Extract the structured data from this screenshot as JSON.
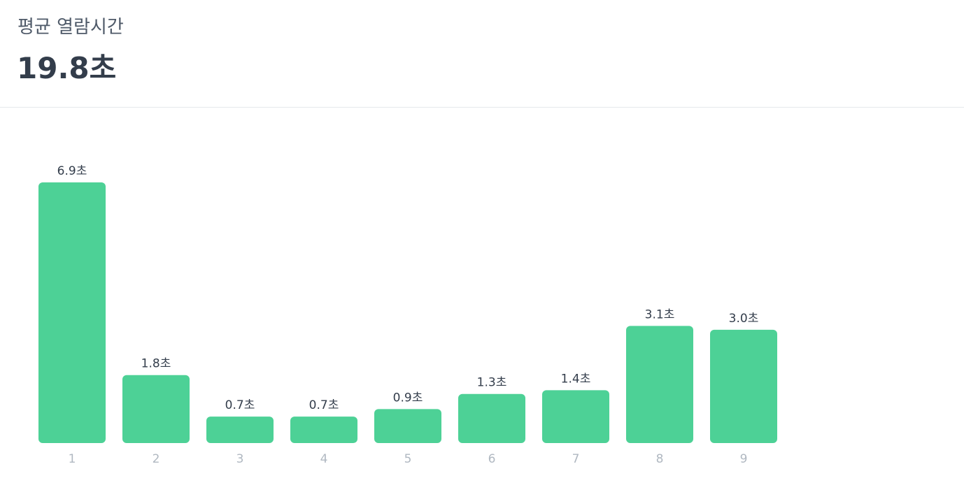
{
  "chart_data": {
    "type": "bar",
    "title": "평균 열람시간",
    "subtitle": "19.8초",
    "categories": [
      "1",
      "2",
      "3",
      "4",
      "5",
      "6",
      "7",
      "8",
      "9"
    ],
    "values": [
      6.9,
      1.8,
      0.7,
      0.7,
      0.9,
      1.3,
      1.4,
      3.1,
      3.0
    ],
    "value_labels": [
      "6.9초",
      "1.8초",
      "0.7초",
      "0.7초",
      "0.9초",
      "1.3초",
      "1.4초",
      "3.1초",
      "3.0초"
    ],
    "color": "#4dd196"
  }
}
